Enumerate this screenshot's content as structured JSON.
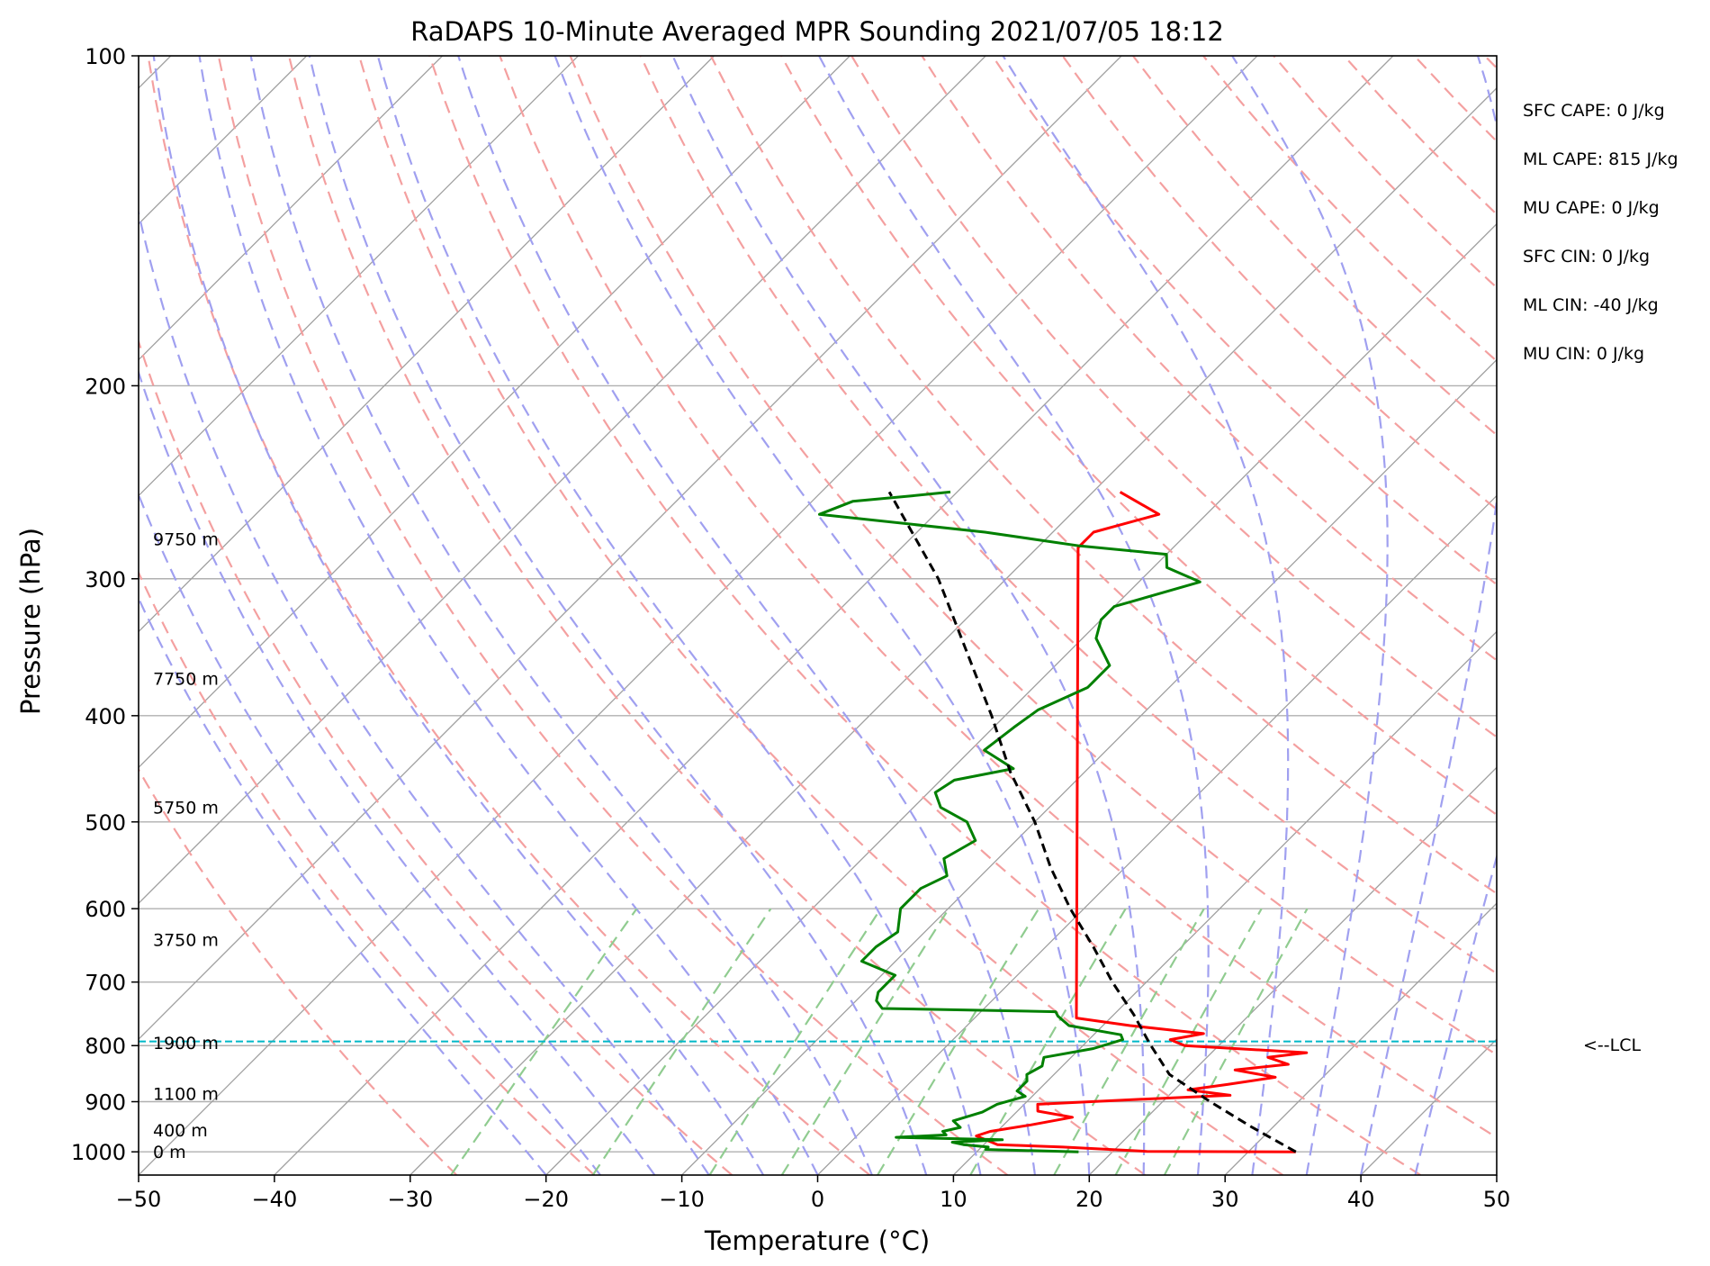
{
  "chart_data": {
    "type": "line",
    "title": "RaDAPS 10-Minute Averaged MPR Sounding 2021/07/05 18:12",
    "xlabel": "Temperature (°C)",
    "ylabel": "Pressure (hPa)",
    "xlim": [
      -50,
      50
    ],
    "ylim": [
      1050,
      100
    ],
    "y_scale": "log",
    "skew": "skew-T",
    "x_ticks": [
      "−50",
      "−40",
      "−30",
      "−20",
      "−10",
      "0",
      "10",
      "20",
      "30",
      "40",
      "50"
    ],
    "x_tick_values": [
      -50,
      -40,
      -30,
      -20,
      -10,
      0,
      10,
      20,
      30,
      40,
      50
    ],
    "y_ticks": [
      "100",
      "200",
      "300",
      "400",
      "500",
      "600",
      "700",
      "800",
      "900",
      "1000"
    ],
    "y_tick_values": [
      100,
      200,
      300,
      400,
      500,
      600,
      700,
      800,
      900,
      1000
    ],
    "grid": true,
    "background_lines": {
      "isotherms": {
        "color": "#a0a0a0"
      },
      "dry_adiabats": {
        "color": "#f4a0a0"
      },
      "moist_adiabats": {
        "color": "#a0a0f0"
      },
      "mixing_ratio_lines": {
        "color": "#90cc90"
      }
    },
    "series": [
      {
        "role": "temperature",
        "color": "#ff0000",
        "points": [
          {
            "p": 1000,
            "t": 33.5
          },
          {
            "p": 999,
            "t": 22.5
          },
          {
            "p": 990,
            "t": 16.0
          },
          {
            "p": 985,
            "t": 11.0
          },
          {
            "p": 967,
            "t": 8.8
          },
          {
            "p": 958,
            "t": 9.5
          },
          {
            "p": 945,
            "t": 12.0
          },
          {
            "p": 930,
            "t": 14.5
          },
          {
            "p": 918,
            "t": 11.5
          },
          {
            "p": 905,
            "t": 11.0
          },
          {
            "p": 897,
            "t": 17.0
          },
          {
            "p": 888,
            "t": 24.5
          },
          {
            "p": 878,
            "t": 21.0
          },
          {
            "p": 868,
            "t": 23.5
          },
          {
            "p": 855,
            "t": 26.5
          },
          {
            "p": 842,
            "t": 23.0
          },
          {
            "p": 832,
            "t": 26.5
          },
          {
            "p": 820,
            "t": 24.5
          },
          {
            "p": 812,
            "t": 27.0
          },
          {
            "p": 800,
            "t": 17.5
          },
          {
            "p": 790,
            "t": 16.0
          },
          {
            "p": 780,
            "t": 18.0
          },
          {
            "p": 767,
            "t": 12.0
          },
          {
            "p": 755,
            "t": 7.5
          },
          {
            "p": 281,
            "t": -27.0
          },
          {
            "p": 272,
            "t": -27.0
          },
          {
            "p": 262,
            "t": -23.5
          },
          {
            "p": 250,
            "t": -28.0
          }
        ]
      },
      {
        "role": "dewpoint",
        "color": "#008000",
        "points": [
          {
            "p": 1000,
            "t": 17.5
          },
          {
            "p": 995,
            "t": 10.5
          },
          {
            "p": 990,
            "t": 10.5
          },
          {
            "p": 985,
            "t": 8.5
          },
          {
            "p": 980,
            "t": 7.5
          },
          {
            "p": 975,
            "t": 11.0
          },
          {
            "p": 970,
            "t": 3.0
          },
          {
            "p": 965,
            "t": 6.5
          },
          {
            "p": 958,
            "t": 6.0
          },
          {
            "p": 950,
            "t": 7.0
          },
          {
            "p": 937,
            "t": 6.0
          },
          {
            "p": 920,
            "t": 7.5
          },
          {
            "p": 905,
            "t": 8.0
          },
          {
            "p": 890,
            "t": 9.5
          },
          {
            "p": 880,
            "t": 8.5
          },
          {
            "p": 862,
            "t": 8.5
          },
          {
            "p": 850,
            "t": 8.0
          },
          {
            "p": 835,
            "t": 8.5
          },
          {
            "p": 820,
            "t": 8.0
          },
          {
            "p": 805,
            "t": 11.0
          },
          {
            "p": 790,
            "t": 12.5
          },
          {
            "p": 782,
            "t": 12.0
          },
          {
            "p": 767,
            "t": 7.5
          },
          {
            "p": 752,
            "t": 6.0
          },
          {
            "p": 745,
            "t": 5.5
          },
          {
            "p": 740,
            "t": -7.5
          },
          {
            "p": 728,
            "t": -8.5
          },
          {
            "p": 715,
            "t": -9.0
          },
          {
            "p": 690,
            "t": -9.0
          },
          {
            "p": 670,
            "t": -12.5
          },
          {
            "p": 650,
            "t": -12.5
          },
          {
            "p": 630,
            "t": -12.0
          },
          {
            "p": 600,
            "t": -13.5
          },
          {
            "p": 575,
            "t": -13.5
          },
          {
            "p": 560,
            "t": -12.5
          },
          {
            "p": 540,
            "t": -14.0
          },
          {
            "p": 520,
            "t": -13.0
          },
          {
            "p": 500,
            "t": -15.0
          },
          {
            "p": 485,
            "t": -18.0
          },
          {
            "p": 470,
            "t": -19.5
          },
          {
            "p": 458,
            "t": -19.0
          },
          {
            "p": 447,
            "t": -15.5
          },
          {
            "p": 430,
            "t": -19.0
          },
          {
            "p": 410,
            "t": -18.5
          },
          {
            "p": 395,
            "t": -18.0
          },
          {
            "p": 377,
            "t": -16.0
          },
          {
            "p": 360,
            "t": -16.0
          },
          {
            "p": 340,
            "t": -19.0
          },
          {
            "p": 327,
            "t": -20.0
          },
          {
            "p": 318,
            "t": -20.0
          },
          {
            "p": 302,
            "t": -15.5
          },
          {
            "p": 293,
            "t": -19.0
          },
          {
            "p": 285,
            "t": -20.0
          },
          {
            "p": 280,
            "t": -27.0
          },
          {
            "p": 272,
            "t": -35.0
          },
          {
            "p": 262,
            "t": -48.5
          },
          {
            "p": 255,
            "t": -47.0
          },
          {
            "p": 252,
            "t": -43.0
          },
          {
            "p": 250,
            "t": -40.5
          }
        ]
      },
      {
        "role": "parcel",
        "color": "#000000",
        "dashed": true,
        "points": [
          {
            "p": 1000,
            "t": 33.5
          },
          {
            "p": 950,
            "t": 28.5
          },
          {
            "p": 900,
            "t": 23.5
          },
          {
            "p": 850,
            "t": 18.5
          },
          {
            "p": 797,
            "t": 14.8
          },
          {
            "p": 750,
            "t": 11.5
          },
          {
            "p": 700,
            "t": 7.5
          },
          {
            "p": 650,
            "t": 3.5
          },
          {
            "p": 600,
            "t": -1.0
          },
          {
            "p": 550,
            "t": -5.5
          },
          {
            "p": 500,
            "t": -10.0
          },
          {
            "p": 450,
            "t": -15.5
          },
          {
            "p": 400,
            "t": -21.0
          },
          {
            "p": 350,
            "t": -27.5
          },
          {
            "p": 300,
            "t": -35.0
          },
          {
            "p": 250,
            "t": -45.0
          }
        ]
      }
    ],
    "lcl": {
      "p": 793,
      "color": "#00b8c8",
      "label": "<--LCL"
    },
    "height_labels": [
      {
        "label": "0 m",
        "p": 1000
      },
      {
        "label": "400 m",
        "p": 955
      },
      {
        "label": "1100 m",
        "p": 885
      },
      {
        "label": "1900 m",
        "p": 795
      },
      {
        "label": "3750 m",
        "p": 640
      },
      {
        "label": "5750 m",
        "p": 485
      },
      {
        "label": "7750 m",
        "p": 370
      },
      {
        "label": "9750 m",
        "p": 276
      }
    ],
    "annotations": [
      "SFC CAPE: 0 J/kg",
      "ML CAPE: 815 J/kg",
      "MU CAPE: 0 J/kg",
      "SFC CIN: 0 J/kg",
      "ML CIN: -40 J/kg",
      "MU CIN: 0 J/kg"
    ]
  }
}
